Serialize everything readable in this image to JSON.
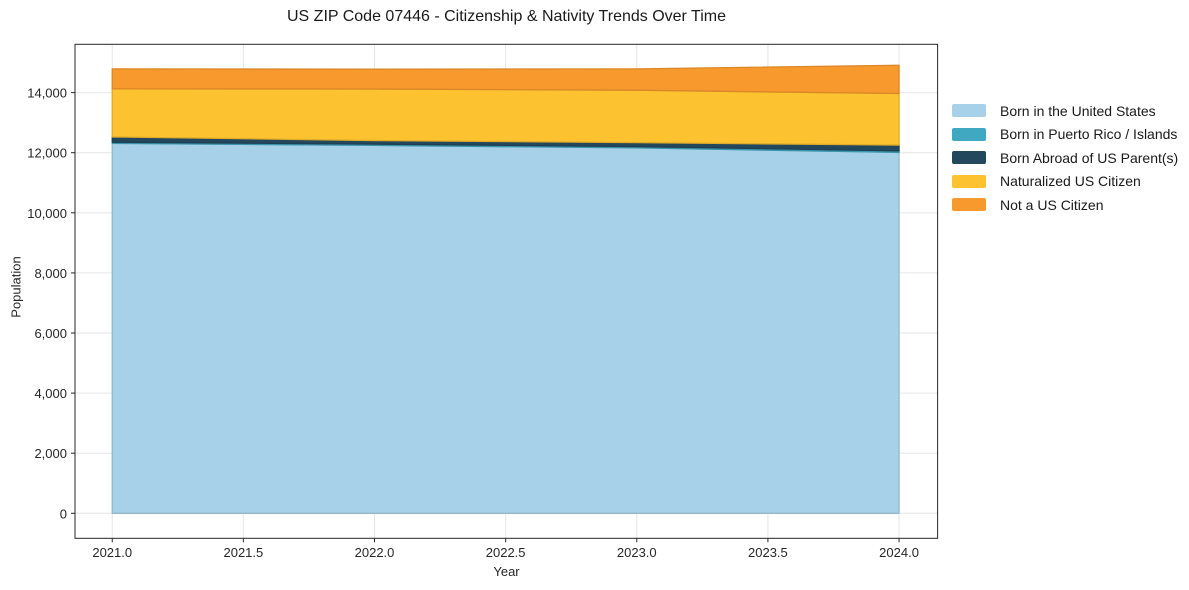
{
  "figure": {
    "title": "US ZIP Code 07446 - Citizenship & Nativity Trends Over Time",
    "background_color": "#ffffff",
    "text_color": "#262626"
  },
  "chart_data": {
    "type": "area",
    "stacked": true,
    "title": "US ZIP Code 07446 - Citizenship & Nativity Trends Over Time",
    "xlabel": "Year",
    "ylabel": "Population",
    "x": [
      2021,
      2022,
      2023,
      2024
    ],
    "series": [
      {
        "name": "Born in the United States",
        "color": "#a6d1e8",
        "values": [
          12310,
          12245,
          12160,
          12010
        ]
      },
      {
        "name": "Born in Puerto Rico / Islands",
        "color": "#41a8c2",
        "values": [
          40,
          40,
          45,
          50
        ]
      },
      {
        "name": "Born Abroad of US Parent(s)",
        "color": "#23485e",
        "values": [
          175,
          120,
          130,
          195
        ]
      },
      {
        "name": "Naturalized US Citizen",
        "color": "#fdc22f",
        "values": [
          1600,
          1715,
          1745,
          1715
        ]
      },
      {
        "name": "Not a US Citizen",
        "color": "#f8992d",
        "values": [
          665,
          660,
          710,
          940
        ]
      }
    ],
    "x_ticks": [
      2021.0,
      2021.5,
      2022.0,
      2022.5,
      2023.0,
      2023.5,
      2024.0
    ],
    "x_tick_labels": [
      "2021.0",
      "2021.5",
      "2022.0",
      "2022.5",
      "2023.0",
      "2023.5",
      "2024.0"
    ],
    "y_ticks": [
      0,
      2000,
      4000,
      6000,
      8000,
      10000,
      12000,
      14000
    ],
    "y_tick_labels": [
      "0",
      "2,000",
      "4,000",
      "6,000",
      "8,000",
      "10,000",
      "12,000",
      "14,000"
    ],
    "xlim": [
      2020.858,
      2024.147
    ],
    "ylim": [
      -832,
      15608
    ],
    "grid": true,
    "grid_color": "#e6e6e6",
    "legend_position": "right-outside"
  }
}
